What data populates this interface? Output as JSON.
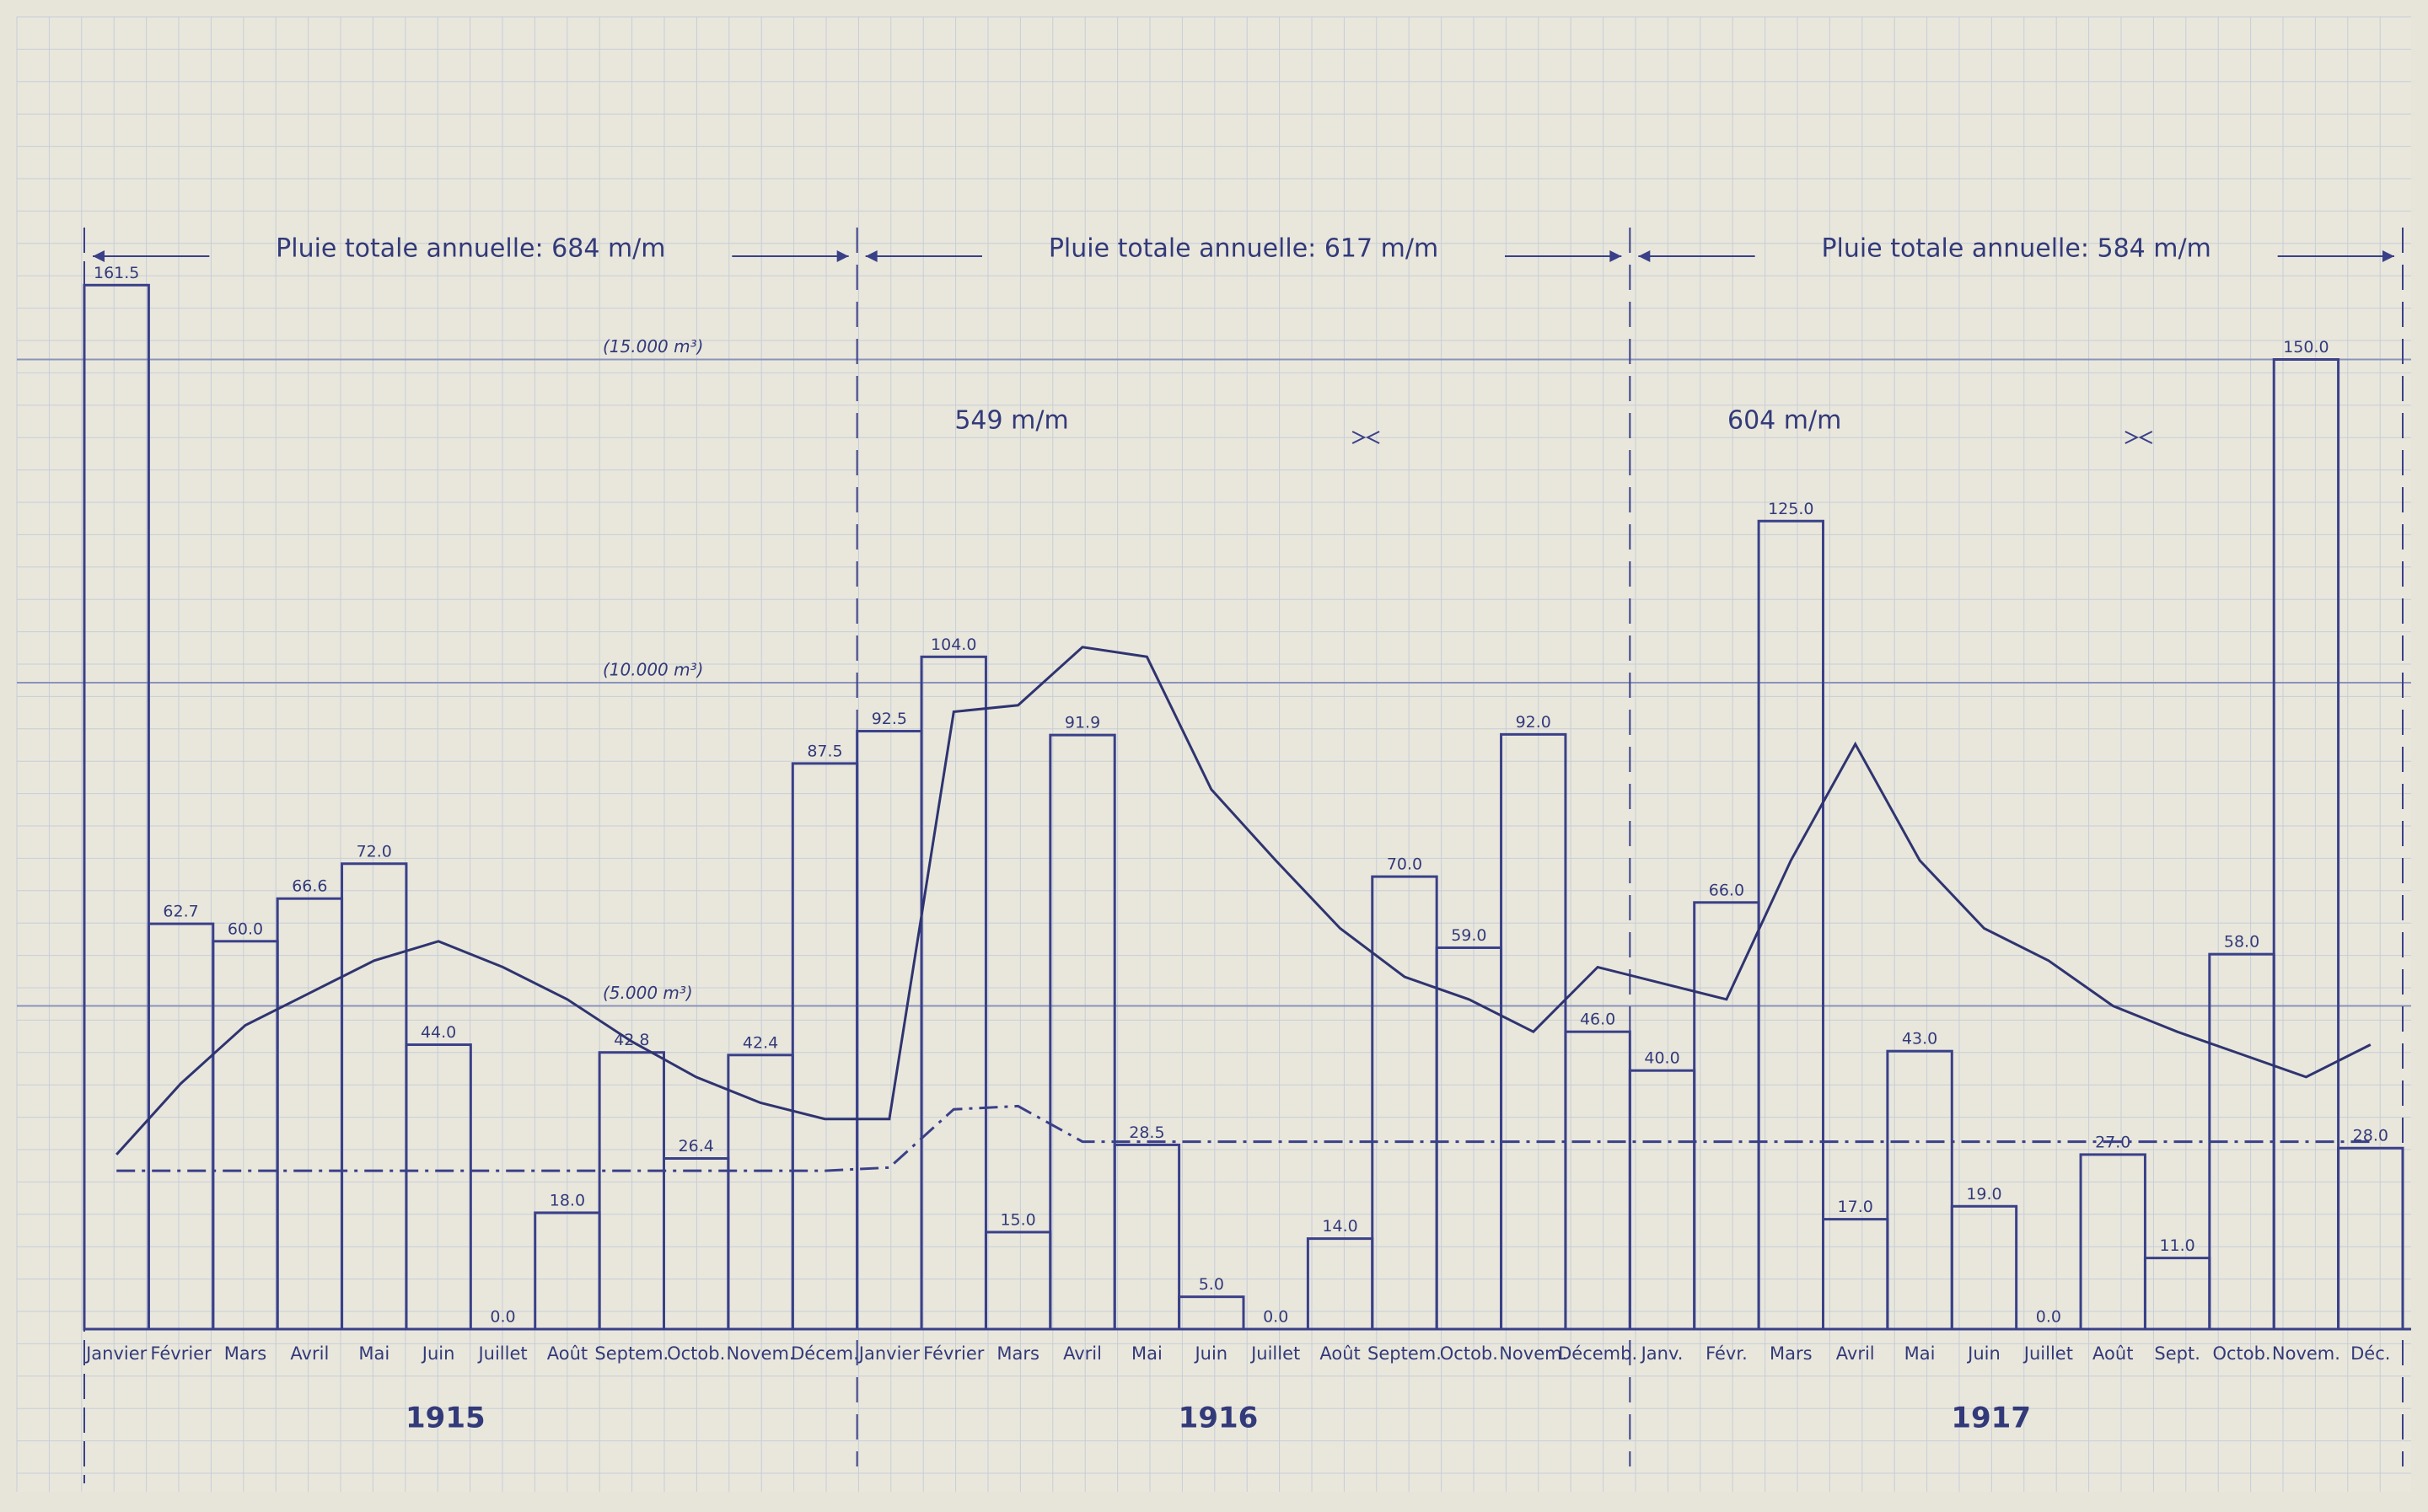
{
  "chart_data": {
    "type": "bar",
    "categories": [
      "Janvier",
      "Février",
      "Mars",
      "Avril",
      "Mai",
      "Juin",
      "Juillet",
      "Août",
      "Septem.",
      "Octob.",
      "Novem.",
      "Décem.",
      "Janvier",
      "Février",
      "Mars",
      "Avril",
      "Mai",
      "Juin",
      "Juillet",
      "Août",
      "Septem.",
      "Octob.",
      "Novem.",
      "Décemb.",
      "Janv.",
      "Févr.",
      "Mars",
      "Avril",
      "Mai",
      "Juin",
      "Juillet",
      "Août",
      "Sept.",
      "Octob.",
      "Novem.",
      "Déc."
    ],
    "years": [
      "1915",
      "1916",
      "1917"
    ],
    "annual_totals": [
      "Pluie totale annuelle: 684 m/m",
      "Pluie totale annuelle: 617 m/m",
      "Pluie totale annuelle: 584 m/m"
    ],
    "partial_totals": [
      "549 m/m",
      "604 m/m"
    ],
    "series": [
      {
        "type": "bar",
        "color": "#3a4088",
        "values": [
          161.5,
          62.7,
          60.0,
          66.6,
          72.0,
          44.0,
          0.0,
          18.0,
          42.8,
          26.4,
          42.4,
          87.5,
          92.5,
          104.0,
          15.0,
          91.9,
          28.5,
          5.0,
          0.0,
          14.0,
          70.0,
          59.0,
          92.0,
          46.0,
          40.0,
          66.0,
          125.0,
          17.0,
          43.0,
          19.0,
          0.0,
          27.0,
          11.0,
          58.0,
          150.0,
          28.0
        ],
        "value_labels": [
          "161.5",
          "62.7",
          "60.0",
          "66.6",
          "72.0",
          "44.0",
          "0.0",
          "18.0",
          "42.8",
          "26.4",
          "42.4",
          "87.5",
          "92.5",
          "104.0",
          "15.0",
          "91.9",
          "28.5",
          "5.0",
          "0.0",
          "14.0",
          "70.0",
          "59.0",
          "92.0",
          "46.0",
          "40.0",
          "66.0",
          "125.0",
          "17.0",
          "43.0",
          "19.0",
          "0.0",
          "27.0",
          "11.0",
          "58.0",
          "150.0",
          "28.0"
        ]
      },
      {
        "type": "line",
        "axis": "y2",
        "color": "#2f3470",
        "values": [
          2700,
          3800,
          4700,
          5200,
          5700,
          6000,
          5600,
          5100,
          4450,
          3900,
          3500,
          3250,
          3250,
          9550,
          9650,
          10550,
          10400,
          8350,
          7250,
          6200,
          5450,
          5100,
          4600,
          5600,
          5350,
          5100,
          7250,
          9050,
          7250,
          6200,
          5700,
          5000,
          4600,
          4250,
          3900,
          4400
        ]
      },
      {
        "type": "line",
        "axis": "y2",
        "dash": "dashdot",
        "color": "#3a4088",
        "values": [
          2450,
          2450,
          2450,
          2450,
          2450,
          2450,
          2450,
          2450,
          2450,
          2450,
          2450,
          2450,
          2500,
          3400,
          3450,
          2900,
          2900,
          2900,
          2900,
          2900,
          2900,
          2900,
          2900,
          2900,
          2900,
          2900,
          2900,
          2900,
          2900,
          2900,
          2900,
          2900,
          2900,
          2900,
          2900,
          2900
        ]
      }
    ],
    "ylim": [
      0,
      200
    ],
    "y2lim": [
      0,
      20000
    ],
    "y2ticks": [
      {
        "value": 5000,
        "label": "(5.000 m³)"
      },
      {
        "value": 10000,
        "label": "(10.000 m³)"
      },
      {
        "value": 15000,
        "label": "(15.000 m³)"
      }
    ],
    "grid": true
  }
}
